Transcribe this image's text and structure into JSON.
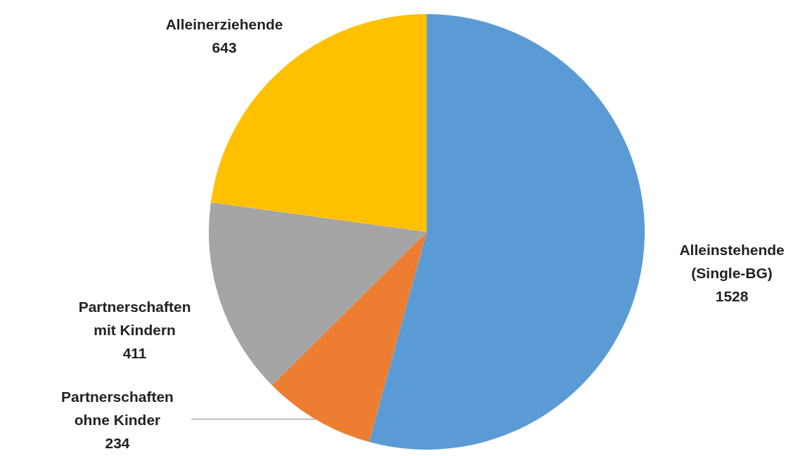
{
  "chart_data": {
    "type": "pie",
    "categories": [
      "Alleinstehende (Single-BG)",
      "Partnerschaften ohne Kinder",
      "Partnerschaften mit Kindern",
      "Alleinerziehende"
    ],
    "values": [
      1528,
      234,
      411,
      643
    ],
    "colors": [
      "#5b9bd5",
      "#ed7d31",
      "#a5a5a5",
      "#ffc000"
    ],
    "data_labels": true
  }
}
